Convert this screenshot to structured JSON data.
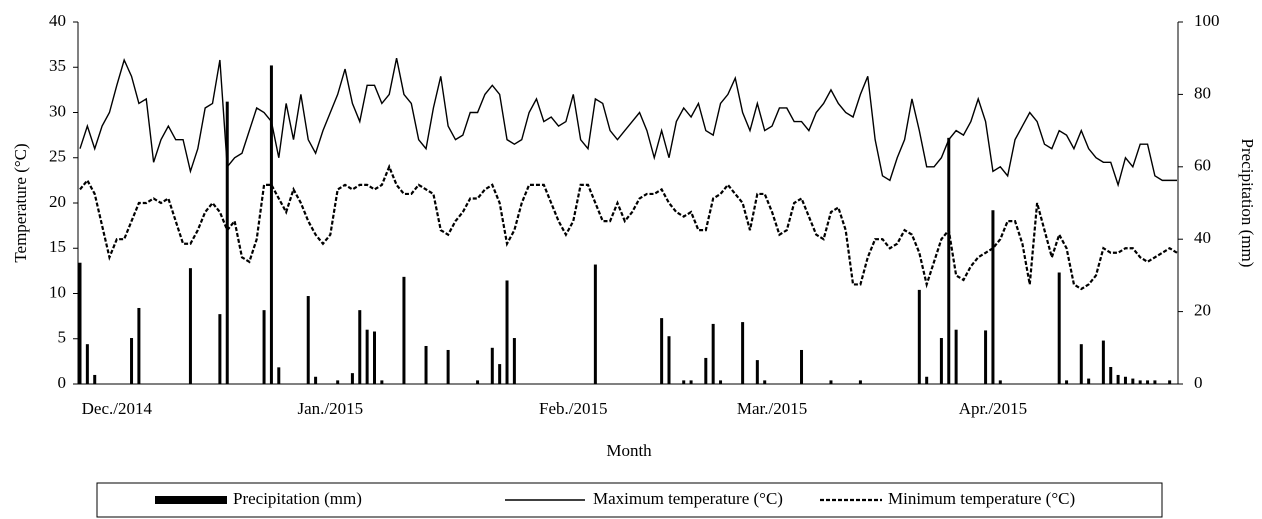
{
  "chart_data": {
    "type": "combo",
    "x_label": "Month",
    "y_label": "Temperature (°C)",
    "y2_label": "Precipitation (mm)",
    "ylim": [
      0,
      40
    ],
    "yticks": [
      0,
      5,
      10,
      15,
      20,
      25,
      30,
      35,
      40
    ],
    "y2lim": [
      0,
      100
    ],
    "y2ticks": [
      0,
      20,
      40,
      60,
      80,
      100
    ],
    "categories": [
      null,
      null,
      null,
      null,
      null,
      "Dec./2014",
      null,
      null,
      null,
      null,
      null,
      null,
      null,
      null,
      null,
      null,
      null,
      null,
      null,
      null,
      null,
      null,
      null,
      null,
      null,
      null,
      null,
      null,
      null,
      null,
      null,
      null,
      null,
      null,
      "Jan./2015",
      null,
      null,
      null,
      null,
      null,
      null,
      null,
      null,
      null,
      null,
      null,
      null,
      null,
      null,
      null,
      null,
      null,
      null,
      null,
      null,
      null,
      null,
      null,
      null,
      null,
      null,
      null,
      null,
      null,
      null,
      null,
      null,
      "Feb./2015",
      null,
      null,
      null,
      null,
      null,
      null,
      null,
      null,
      null,
      null,
      null,
      null,
      null,
      null,
      null,
      null,
      null,
      null,
      null,
      null,
      null,
      null,
      null,
      null,
      null,
      null,
      "Mar./2015",
      null,
      null,
      null,
      null,
      null,
      null,
      null,
      null,
      null,
      null,
      null,
      null,
      null,
      null,
      null,
      null,
      null,
      null,
      null,
      null,
      null,
      null,
      null,
      null,
      null,
      null,
      null,
      null,
      null,
      "Apr./2015",
      null,
      null,
      null,
      null,
      null,
      null,
      null,
      null,
      null,
      null,
      null,
      null,
      null,
      null,
      null,
      null,
      null,
      null,
      null,
      null,
      null,
      null,
      null,
      null,
      null
    ],
    "series": [
      {
        "name": "Precipitation (mm)",
        "type": "bar",
        "axis": "y2",
        "color": "#000000",
        "values": [
          33.5,
          11,
          2.5,
          0,
          0,
          0,
          0,
          12.7,
          21,
          0,
          0,
          0,
          0,
          0,
          0,
          32,
          0,
          0,
          0,
          19.3,
          78,
          0,
          0,
          0,
          0,
          20.4,
          88,
          4.6,
          0,
          0,
          0,
          24.3,
          2,
          0,
          0,
          1,
          0,
          3,
          20.4,
          15,
          14.5,
          1,
          0,
          0,
          29.6,
          0,
          0,
          10.5,
          0,
          0,
          9.4,
          0,
          0,
          0,
          1,
          0,
          10,
          5.5,
          28.6,
          12.7,
          0,
          0,
          0,
          0,
          0,
          0,
          0,
          0,
          0,
          0,
          33,
          0,
          0,
          0,
          0,
          0,
          0,
          0,
          0,
          18.2,
          13.2,
          0,
          1,
          1,
          0,
          7.2,
          16.6,
          1,
          0,
          0,
          17.1,
          0,
          6.6,
          1,
          0,
          0,
          0,
          0,
          9.4,
          0,
          0,
          0,
          1,
          0,
          0,
          0,
          1,
          0,
          0,
          0,
          0,
          0,
          0,
          0,
          26,
          2,
          0,
          12.7,
          68,
          15,
          0,
          0,
          0,
          14.8,
          48,
          1,
          0,
          0,
          0,
          0,
          0,
          0,
          0,
          30.8,
          1,
          0,
          11,
          1.5,
          0,
          12,
          4.7,
          2.5,
          2,
          1.5,
          1,
          1,
          1,
          0,
          1,
          0
        ]
      },
      {
        "name": "Maximum temperature (°C)",
        "type": "line",
        "line_style": "solid",
        "color": "#000000",
        "values": [
          26,
          28.5,
          26,
          28.5,
          30,
          33,
          35.8,
          34,
          31,
          31.5,
          24.5,
          27,
          28.5,
          27,
          27,
          23.5,
          26,
          30.5,
          31,
          35.8,
          24,
          25,
          25.5,
          28,
          30.5,
          30,
          29,
          25,
          31,
          27,
          32,
          27,
          25.5,
          28,
          30,
          32,
          34.8,
          31,
          29,
          33,
          33,
          31,
          32,
          36,
          32,
          31,
          27,
          26,
          30.5,
          34,
          28.5,
          27,
          27.5,
          30,
          30,
          32,
          33,
          32,
          27,
          26.5,
          27,
          30,
          31.5,
          29,
          29.5,
          28.5,
          29,
          32,
          27,
          26,
          31.5,
          31,
          28,
          27,
          28,
          29,
          30,
          28,
          25,
          28,
          25,
          29,
          30.5,
          29.5,
          31,
          28,
          27.5,
          31,
          32,
          33.8,
          30,
          28,
          31,
          28,
          28.5,
          30.5,
          30.5,
          29,
          29,
          28,
          30,
          31,
          32.5,
          31,
          30,
          29.5,
          32,
          34,
          27,
          23,
          22.5,
          25,
          27,
          31.5,
          28,
          24,
          24,
          25,
          27,
          28,
          27.5,
          29,
          31.5,
          29,
          23.5,
          24,
          23,
          27,
          28.5,
          30,
          29,
          26.5,
          26,
          28,
          27.5,
          26,
          28,
          26,
          25,
          24.5,
          24.5,
          22,
          25,
          24,
          26.5,
          26.5,
          23,
          22.5,
          22.5,
          22.5
        ]
      },
      {
        "name": "Minimum temperature (°C)",
        "type": "line",
        "line_style": "dashed",
        "color": "#000000",
        "values": [
          21.5,
          22.5,
          21,
          17.5,
          14,
          16,
          16,
          18,
          20,
          20,
          20.5,
          20,
          20.5,
          18,
          15.5,
          15.5,
          17,
          19,
          20,
          19,
          17,
          18,
          14,
          13.5,
          16,
          22,
          22,
          20.5,
          19,
          21.5,
          20,
          18,
          16.5,
          15.5,
          16.5,
          21.5,
          22,
          21.5,
          22,
          22,
          21.5,
          22,
          24,
          22,
          21,
          21,
          22,
          21.5,
          21,
          17,
          16.5,
          18,
          19,
          20.5,
          20.5,
          21.5,
          22,
          20,
          15.5,
          17,
          20,
          22,
          22,
          22,
          20,
          18,
          16.5,
          18,
          22,
          22,
          20,
          18,
          18,
          20,
          18,
          19,
          20.5,
          21,
          21,
          21.5,
          20,
          19,
          18.5,
          19,
          17,
          17,
          20.5,
          21,
          22,
          21,
          20,
          17,
          21,
          21,
          19,
          16.5,
          17,
          20,
          20.5,
          18.5,
          16.5,
          16,
          19,
          19.5,
          17,
          11,
          11,
          14,
          16,
          16,
          15,
          15.5,
          17,
          16.5,
          14.5,
          11,
          13.5,
          16,
          17,
          12,
          11.5,
          13,
          14,
          14.5,
          15,
          16,
          18,
          18,
          15.5,
          11,
          20,
          17,
          14,
          16.5,
          15,
          11,
          10.5,
          11,
          12,
          15,
          14.5,
          14.5,
          15,
          15,
          14,
          13.5,
          14,
          14.5,
          15,
          14.5
        ]
      }
    ]
  }
}
